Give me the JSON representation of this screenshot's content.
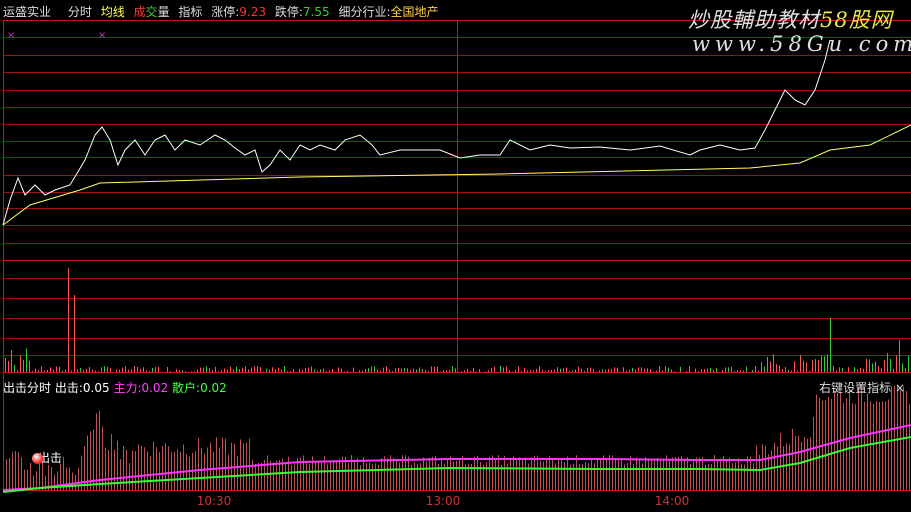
{
  "header": {
    "stock_name": "运盛实业",
    "tabs": [
      "分时",
      "均线",
      "成",
      "交",
      "量",
      "指标"
    ],
    "limit_up_label": "涨停:",
    "limit_up": "9.23",
    "limit_down_label": "跌停:",
    "limit_down": "7.55",
    "industry_label": "细分行业:",
    "industry": "全国地产"
  },
  "watermark": {
    "line1": "炒股輔助教材",
    "brand": "58股网",
    "line2": "www.58Gu.com"
  },
  "indicator": {
    "name": "出击分时",
    "chuji_label": "出击:",
    "chuji": "0.05",
    "zhuli_label": "主力:",
    "zhuli": "0.02",
    "sanhu_label": "散户:",
    "sanhu": "0.02",
    "settings": "右键设置指标",
    "close": "×",
    "signal_label": "出击"
  },
  "time_axis": [
    "10:30",
    "13:00",
    "14:00"
  ],
  "marks": [
    "×",
    "×"
  ],
  "colors": {
    "grid": "#a01010",
    "price": "#ffffff",
    "avg": "#ffff66",
    "up": "#ff5555",
    "down": "#33cc33",
    "zhuli": "#ff33ff",
    "sanhu": "#33ff33"
  }
}
